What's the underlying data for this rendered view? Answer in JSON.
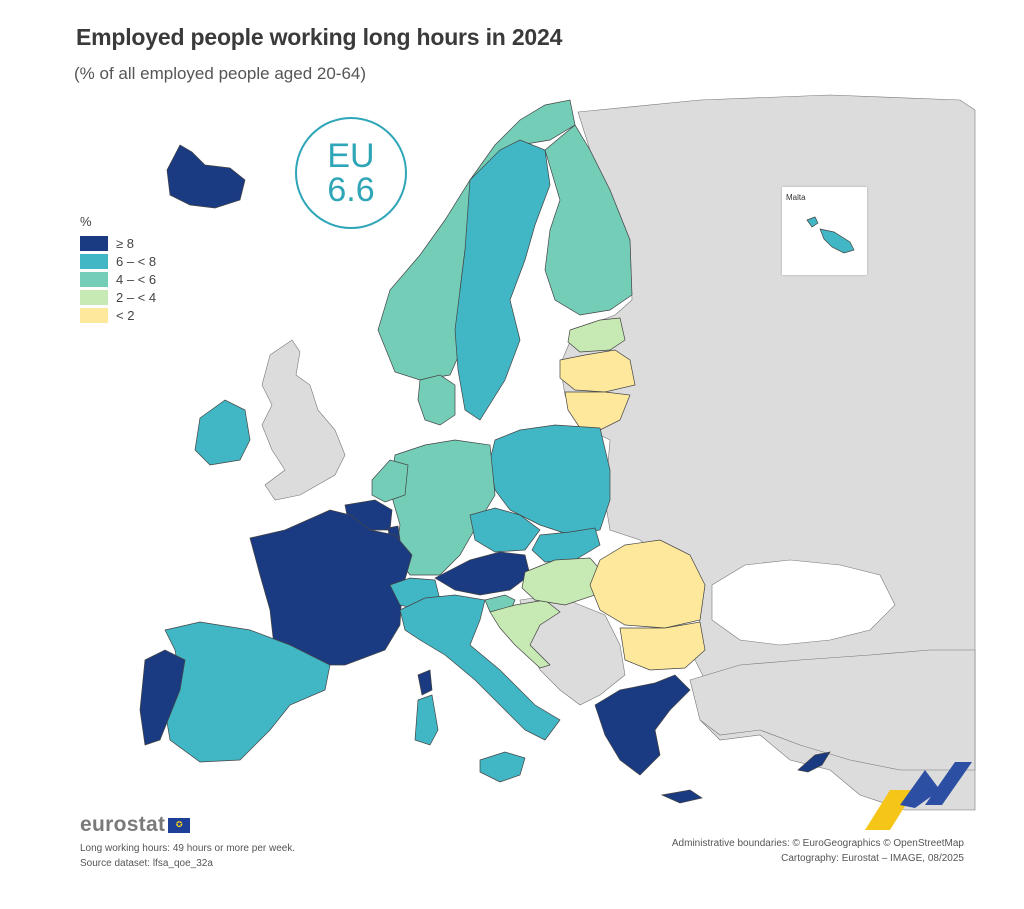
{
  "title": "Employed people working long hours in 2024",
  "subtitle": "(% of all employed people aged 20-64)",
  "eu_badge": {
    "label": "EU",
    "value": "6.6"
  },
  "legend": {
    "unit": "%",
    "classes": [
      {
        "label": "≥ 8",
        "color": "#1a3a82"
      },
      {
        "label": "6 – < 8",
        "color": "#41b6c4"
      },
      {
        "label": "4 – < 6",
        "color": "#73cdb7"
      },
      {
        "label": "2 – < 4",
        "color": "#c7e9b4"
      },
      {
        "label": "< 2",
        "color": "#fde89c"
      }
    ]
  },
  "no_data_color": "#dcdcdc",
  "inset": {
    "label": "Malta"
  },
  "countries": [
    {
      "name": "Iceland",
      "class": 0
    },
    {
      "name": "Ireland",
      "class": 1
    },
    {
      "name": "Norway",
      "class": 2
    },
    {
      "name": "Sweden",
      "class": 1
    },
    {
      "name": "Finland",
      "class": 2
    },
    {
      "name": "Denmark",
      "class": 2
    },
    {
      "name": "Estonia",
      "class": 3
    },
    {
      "name": "Latvia",
      "class": 4
    },
    {
      "name": "Lithuania",
      "class": 4
    },
    {
      "name": "Poland",
      "class": 1
    },
    {
      "name": "Germany",
      "class": 2
    },
    {
      "name": "Netherlands",
      "class": 2
    },
    {
      "name": "Belgium",
      "class": 0
    },
    {
      "name": "Luxembourg",
      "class": 0
    },
    {
      "name": "France",
      "class": 0
    },
    {
      "name": "Spain",
      "class": 1
    },
    {
      "name": "Portugal",
      "class": 0
    },
    {
      "name": "Czechia",
      "class": 1
    },
    {
      "name": "Slovakia",
      "class": 1
    },
    {
      "name": "Austria",
      "class": 0
    },
    {
      "name": "Switzerland",
      "class": 1
    },
    {
      "name": "Italy",
      "class": 1
    },
    {
      "name": "Slovenia",
      "class": 2
    },
    {
      "name": "Croatia",
      "class": 3
    },
    {
      "name": "Hungary",
      "class": 3
    },
    {
      "name": "Romania",
      "class": 4
    },
    {
      "name": "Bulgaria",
      "class": 4
    },
    {
      "name": "Greece",
      "class": 0
    },
    {
      "name": "Cyprus",
      "class": 0
    },
    {
      "name": "Malta",
      "class": 1
    }
  ],
  "footer": {
    "logo_text": "eurostat",
    "note": "Long working hours: 49 hours or more per week.",
    "source": "Source dataset: lfsa_qoe_32a",
    "boundaries": "Administrative boundaries: © EuroGeographics © OpenStreetMap",
    "cartography": "Cartography: Eurostat – IMAGE, 08/2025"
  }
}
